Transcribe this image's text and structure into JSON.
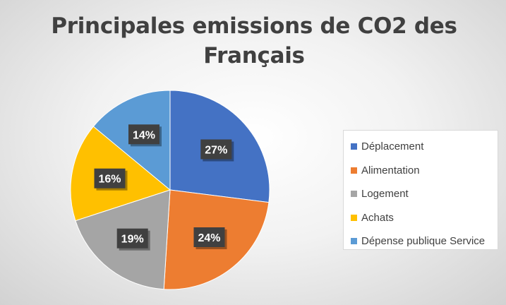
{
  "chart_data": {
    "type": "pie",
    "title": "Principales emissions de CO2 des Français",
    "title_lines": [
      "Principales emissions de CO2 des",
      "Français"
    ],
    "categories": [
      "Déplacement",
      "Alimentation",
      "Logement",
      "Achats",
      "Dépense publique Service"
    ],
    "values": [
      27,
      24,
      19,
      16,
      14
    ],
    "data_labels": [
      "27%",
      "24%",
      "19%",
      "16%",
      "14%"
    ],
    "colors": [
      "#4472c4",
      "#ed7d31",
      "#a5a5a5",
      "#ffc000",
      "#5b9bd5"
    ],
    "start_angle": "12 o'clock",
    "direction": "clockwise",
    "legend_position": "right"
  }
}
